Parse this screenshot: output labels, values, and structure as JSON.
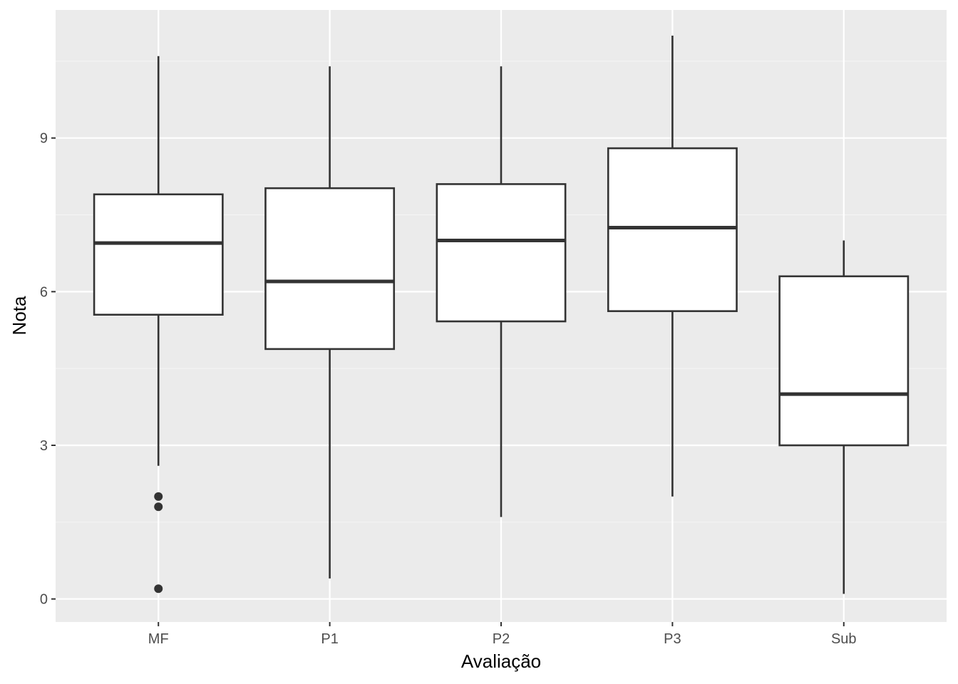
{
  "chart_data": {
    "type": "boxplot",
    "title": "",
    "xlabel": "Avaliação",
    "ylabel": "Nota",
    "ylim": [
      -0.45,
      11.5
    ],
    "yticks": [
      0,
      3,
      6,
      9
    ],
    "ytick_labels": [
      "0",
      "3",
      "6",
      "9"
    ],
    "categories": [
      "MF",
      "P1",
      "P2",
      "P3",
      "Sub"
    ],
    "boxes": [
      {
        "category": "MF",
        "whisker_low": 2.6,
        "q1": 5.55,
        "median": 6.95,
        "q3": 7.9,
        "whisker_high": 10.6,
        "outliers": [
          2.0,
          1.8,
          0.2
        ]
      },
      {
        "category": "P1",
        "whisker_low": 0.4,
        "q1": 4.88,
        "median": 6.2,
        "q3": 8.02,
        "whisker_high": 10.4,
        "outliers": []
      },
      {
        "category": "P2",
        "whisker_low": 1.6,
        "q1": 5.42,
        "median": 7.0,
        "q3": 8.1,
        "whisker_high": 10.4,
        "outliers": []
      },
      {
        "category": "P3",
        "whisker_low": 2.0,
        "q1": 5.62,
        "median": 7.25,
        "q3": 8.8,
        "whisker_high": 11.0,
        "outliers": []
      },
      {
        "category": "Sub",
        "whisker_low": 0.1,
        "q1": 3.0,
        "median": 4.0,
        "q3": 6.3,
        "whisker_high": 7.0,
        "outliers": []
      }
    ],
    "grid": true,
    "legend": "none",
    "colors": {
      "panel_background": "#ebebeb",
      "grid_major": "#ffffff",
      "grid_minor": "#f5f5f5",
      "box_fill": "#ffffff",
      "box_stroke": "#333333",
      "tick_mark": "#333333"
    }
  }
}
